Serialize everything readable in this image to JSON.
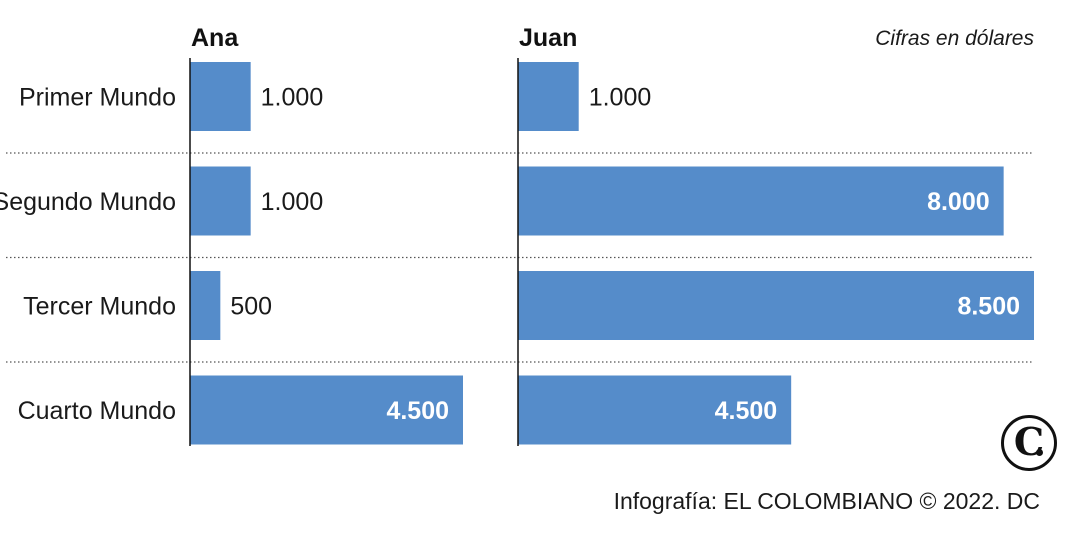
{
  "chart_data": {
    "type": "bar",
    "orientation": "horizontal",
    "unit_note": "Cifras en dólares",
    "categories": [
      "Primer Mundo",
      "Segundo Mundo",
      "Tercer Mundo",
      "Cuarto Mundo"
    ],
    "series": [
      {
        "name": "Ana",
        "values": [
          1000,
          1000,
          500,
          4500
        ],
        "value_labels": [
          "1.000",
          "1.000",
          "500",
          "4.500"
        ]
      },
      {
        "name": "Juan",
        "values": [
          1000,
          8000,
          8500,
          4500
        ],
        "value_labels": [
          "1.000",
          "8.000",
          "8.500",
          "4.500"
        ]
      }
    ],
    "bar_color": "#558cca",
    "separator_style": "dotted",
    "grid": false
  },
  "credit": "Infografía: EL COLOMBIANO © 2022. DC",
  "logo_letter": "C"
}
